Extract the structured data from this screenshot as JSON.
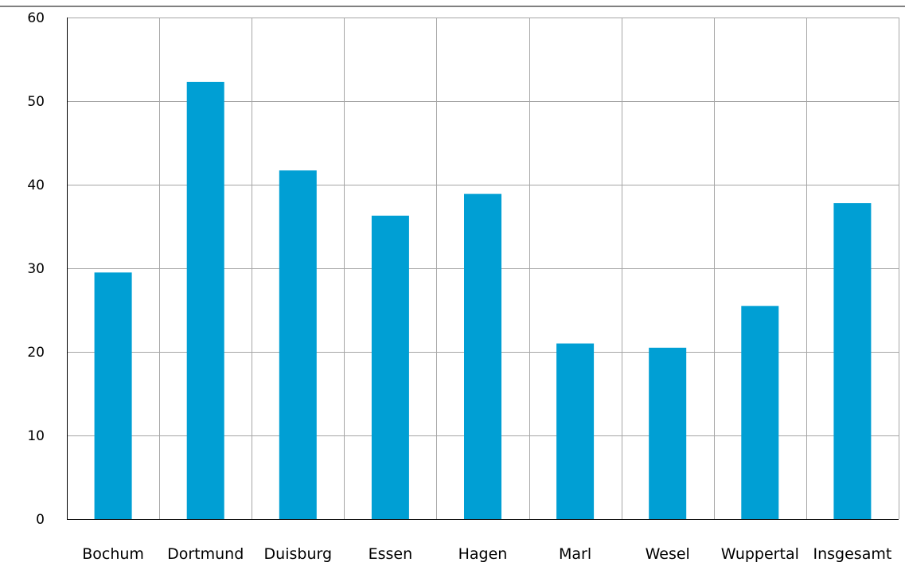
{
  "chart_data": {
    "type": "bar",
    "title": "",
    "xlabel": "",
    "ylabel": "",
    "categories": [
      "Bochum",
      "Dortmund",
      "Duisburg",
      "Essen",
      "Hagen",
      "Marl",
      "Wesel",
      "Wuppertal",
      "Insgesamt"
    ],
    "values": [
      29.5,
      52.3,
      41.7,
      36.3,
      38.9,
      21.0,
      20.5,
      25.5,
      37.8
    ],
    "ylim": [
      0,
      60
    ],
    "yticks": [
      0,
      10,
      20,
      30,
      40,
      50,
      60
    ],
    "grid": true,
    "legend": "none",
    "bar_color": "#009fd4",
    "grid_color": "#a6a6a6"
  }
}
